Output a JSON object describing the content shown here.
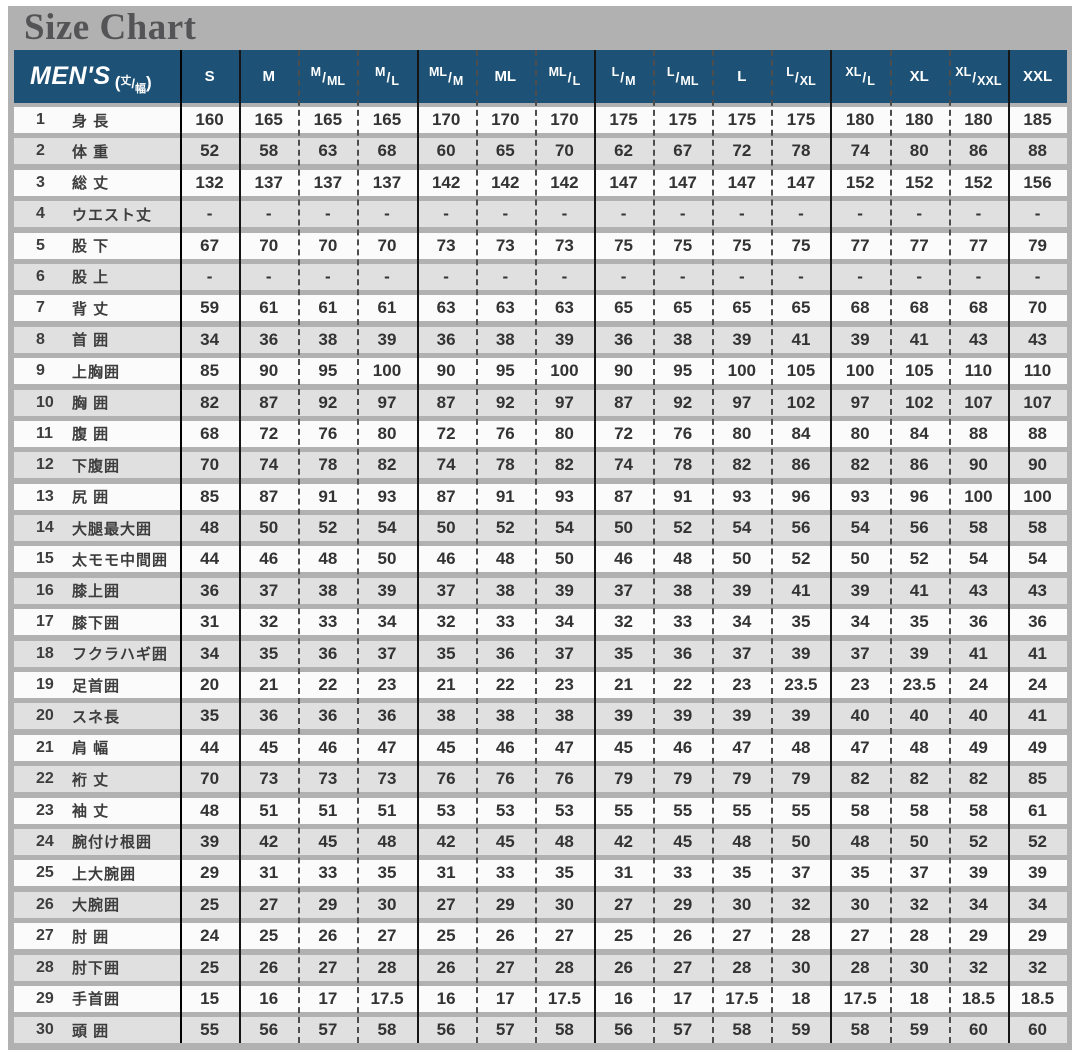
{
  "page": {
    "background_color": "#b1b1b1",
    "header_blue": "#1d5276",
    "row_white": "#fbfbfb",
    "row_gray": "#e0e0e0"
  },
  "chart_data": {
    "type": "table",
    "title": "Size Chart",
    "mens_label": "MEN'S",
    "mens_unit_top": "丈",
    "mens_unit_bottom": "幅",
    "columns": [
      "S",
      "M",
      "M/ML",
      "M/L",
      "ML/M",
      "ML",
      "ML/L",
      "L/M",
      "L/ML",
      "L",
      "L/XL",
      "XL/L",
      "XL",
      "XL/XXL",
      "XXL"
    ],
    "solid_after_columns": [
      0,
      3,
      6,
      10,
      13
    ],
    "rows": [
      {
        "num": "1",
        "label": "身 長",
        "values": [
          "160",
          "165",
          "165",
          "165",
          "170",
          "170",
          "170",
          "175",
          "175",
          "175",
          "175",
          "180",
          "180",
          "180",
          "185"
        ]
      },
      {
        "num": "2",
        "label": "体 重",
        "values": [
          "52",
          "58",
          "63",
          "68",
          "60",
          "65",
          "70",
          "62",
          "67",
          "72",
          "78",
          "74",
          "80",
          "86",
          "88"
        ]
      },
      {
        "num": "3",
        "label": "総 丈",
        "values": [
          "132",
          "137",
          "137",
          "137",
          "142",
          "142",
          "142",
          "147",
          "147",
          "147",
          "147",
          "152",
          "152",
          "152",
          "156"
        ]
      },
      {
        "num": "4",
        "label": "ウエスト丈",
        "values": [
          "-",
          "-",
          "-",
          "-",
          "-",
          "-",
          "-",
          "-",
          "-",
          "-",
          "-",
          "-",
          "-",
          "-",
          "-"
        ]
      },
      {
        "num": "5",
        "label": "股 下",
        "values": [
          "67",
          "70",
          "70",
          "70",
          "73",
          "73",
          "73",
          "75",
          "75",
          "75",
          "75",
          "77",
          "77",
          "77",
          "79"
        ]
      },
      {
        "num": "6",
        "label": "股 上",
        "values": [
          "-",
          "-",
          "-",
          "-",
          "-",
          "-",
          "-",
          "-",
          "-",
          "-",
          "-",
          "-",
          "-",
          "-",
          "-"
        ]
      },
      {
        "num": "7",
        "label": "背 丈",
        "values": [
          "59",
          "61",
          "61",
          "61",
          "63",
          "63",
          "63",
          "65",
          "65",
          "65",
          "65",
          "68",
          "68",
          "68",
          "70"
        ]
      },
      {
        "num": "8",
        "label": "首 囲",
        "values": [
          "34",
          "36",
          "38",
          "39",
          "36",
          "38",
          "39",
          "36",
          "38",
          "39",
          "41",
          "39",
          "41",
          "43",
          "43"
        ]
      },
      {
        "num": "9",
        "label": "上胸囲",
        "values": [
          "85",
          "90",
          "95",
          "100",
          "90",
          "95",
          "100",
          "90",
          "95",
          "100",
          "105",
          "100",
          "105",
          "110",
          "110"
        ]
      },
      {
        "num": "10",
        "label": "胸 囲",
        "values": [
          "82",
          "87",
          "92",
          "97",
          "87",
          "92",
          "97",
          "87",
          "92",
          "97",
          "102",
          "97",
          "102",
          "107",
          "107"
        ]
      },
      {
        "num": "11",
        "label": "腹 囲",
        "values": [
          "68",
          "72",
          "76",
          "80",
          "72",
          "76",
          "80",
          "72",
          "76",
          "80",
          "84",
          "80",
          "84",
          "88",
          "88"
        ]
      },
      {
        "num": "12",
        "label": "下腹囲",
        "values": [
          "70",
          "74",
          "78",
          "82",
          "74",
          "78",
          "82",
          "74",
          "78",
          "82",
          "86",
          "82",
          "86",
          "90",
          "90"
        ]
      },
      {
        "num": "13",
        "label": "尻 囲",
        "values": [
          "85",
          "87",
          "91",
          "93",
          "87",
          "91",
          "93",
          "87",
          "91",
          "93",
          "96",
          "93",
          "96",
          "100",
          "100"
        ]
      },
      {
        "num": "14",
        "label": "大腿最大囲",
        "values": [
          "48",
          "50",
          "52",
          "54",
          "50",
          "52",
          "54",
          "50",
          "52",
          "54",
          "56",
          "54",
          "56",
          "58",
          "58"
        ]
      },
      {
        "num": "15",
        "label": "太モモ中間囲",
        "values": [
          "44",
          "46",
          "48",
          "50",
          "46",
          "48",
          "50",
          "46",
          "48",
          "50",
          "52",
          "50",
          "52",
          "54",
          "54"
        ]
      },
      {
        "num": "16",
        "label": "膝上囲",
        "values": [
          "36",
          "37",
          "38",
          "39",
          "37",
          "38",
          "39",
          "37",
          "38",
          "39",
          "41",
          "39",
          "41",
          "43",
          "43"
        ]
      },
      {
        "num": "17",
        "label": "膝下囲",
        "values": [
          "31",
          "32",
          "33",
          "34",
          "32",
          "33",
          "34",
          "32",
          "33",
          "34",
          "35",
          "34",
          "35",
          "36",
          "36"
        ]
      },
      {
        "num": "18",
        "label": "フクラハギ囲",
        "values": [
          "34",
          "35",
          "36",
          "37",
          "35",
          "36",
          "37",
          "35",
          "36",
          "37",
          "39",
          "37",
          "39",
          "41",
          "41"
        ]
      },
      {
        "num": "19",
        "label": "足首囲",
        "values": [
          "20",
          "21",
          "22",
          "23",
          "21",
          "22",
          "23",
          "21",
          "22",
          "23",
          "23.5",
          "23",
          "23.5",
          "24",
          "24"
        ]
      },
      {
        "num": "20",
        "label": "スネ長",
        "values": [
          "35",
          "36",
          "36",
          "36",
          "38",
          "38",
          "38",
          "39",
          "39",
          "39",
          "39",
          "40",
          "40",
          "40",
          "41"
        ]
      },
      {
        "num": "21",
        "label": "肩 幅",
        "values": [
          "44",
          "45",
          "46",
          "47",
          "45",
          "46",
          "47",
          "45",
          "46",
          "47",
          "48",
          "47",
          "48",
          "49",
          "49"
        ]
      },
      {
        "num": "22",
        "label": "裄 丈",
        "values": [
          "70",
          "73",
          "73",
          "73",
          "76",
          "76",
          "76",
          "79",
          "79",
          "79",
          "79",
          "82",
          "82",
          "82",
          "85"
        ]
      },
      {
        "num": "23",
        "label": "袖 丈",
        "values": [
          "48",
          "51",
          "51",
          "51",
          "53",
          "53",
          "53",
          "55",
          "55",
          "55",
          "55",
          "58",
          "58",
          "58",
          "61"
        ]
      },
      {
        "num": "24",
        "label": "腕付け根囲",
        "values": [
          "39",
          "42",
          "45",
          "48",
          "42",
          "45",
          "48",
          "42",
          "45",
          "48",
          "50",
          "48",
          "50",
          "52",
          "52"
        ]
      },
      {
        "num": "25",
        "label": "上大腕囲",
        "values": [
          "29",
          "31",
          "33",
          "35",
          "31",
          "33",
          "35",
          "31",
          "33",
          "35",
          "37",
          "35",
          "37",
          "39",
          "39"
        ]
      },
      {
        "num": "26",
        "label": "大腕囲",
        "values": [
          "25",
          "27",
          "29",
          "30",
          "27",
          "29",
          "30",
          "27",
          "29",
          "30",
          "32",
          "30",
          "32",
          "34",
          "34"
        ]
      },
      {
        "num": "27",
        "label": "肘 囲",
        "values": [
          "24",
          "25",
          "26",
          "27",
          "25",
          "26",
          "27",
          "25",
          "26",
          "27",
          "28",
          "27",
          "28",
          "29",
          "29"
        ]
      },
      {
        "num": "28",
        "label": "肘下囲",
        "values": [
          "25",
          "26",
          "27",
          "28",
          "26",
          "27",
          "28",
          "26",
          "27",
          "28",
          "30",
          "28",
          "30",
          "32",
          "32"
        ]
      },
      {
        "num": "29",
        "label": "手首囲",
        "values": [
          "15",
          "16",
          "17",
          "17.5",
          "16",
          "17",
          "17.5",
          "16",
          "17",
          "17.5",
          "18",
          "17.5",
          "18",
          "18.5",
          "18.5"
        ]
      },
      {
        "num": "30",
        "label": "頭 囲",
        "values": [
          "55",
          "56",
          "57",
          "58",
          "56",
          "57",
          "58",
          "56",
          "57",
          "58",
          "59",
          "58",
          "59",
          "60",
          "60"
        ]
      }
    ]
  }
}
